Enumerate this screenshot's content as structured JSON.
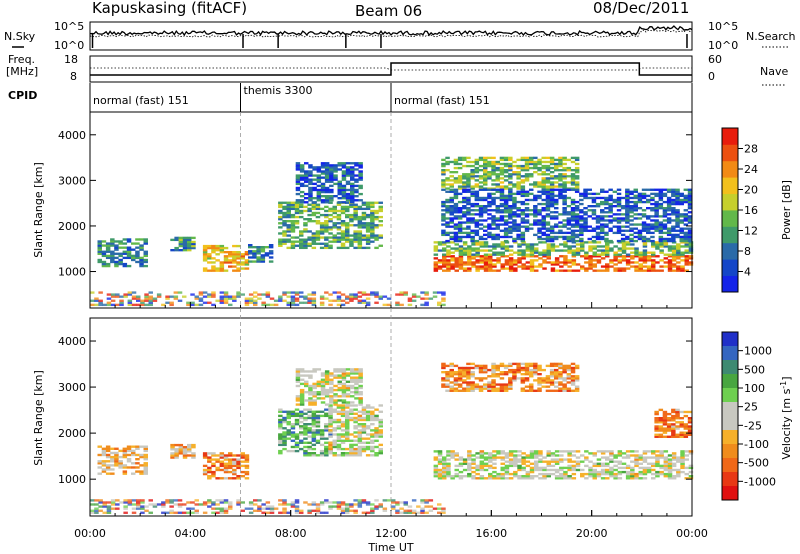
{
  "header": {
    "station": "Kapuskasing (fitACF)",
    "beam": "Beam 06",
    "date": "08/Dec/2011"
  },
  "noise_panel": {
    "left_label": "N.Sky",
    "left_ticks": [
      "10^5",
      "10^0"
    ],
    "right_label": "N.Search",
    "right_ticks": [
      "10^5",
      "10^0"
    ]
  },
  "freq_panel": {
    "left_label_1": "Freq.",
    "left_label_2": "[MHz]",
    "left_ticks": [
      "18",
      "8"
    ],
    "right_label": "Nave",
    "right_ticks": [
      "60",
      "0"
    ]
  },
  "cpid": {
    "label": "CPID",
    "segments": [
      {
        "name": "normal (fast) 151",
        "start_hour": 0,
        "end_hour": 6
      },
      {
        "name": "themis 3300",
        "start_hour": 6,
        "end_hour": 12
      },
      {
        "name": "normal (fast) 151",
        "start_hour": 12,
        "end_hour": 24
      }
    ]
  },
  "x_axis": {
    "label": "Time UT",
    "ticks": [
      "00:00",
      "04:00",
      "08:00",
      "12:00",
      "16:00",
      "20:00",
      "00:00"
    ]
  },
  "chart_data": [
    {
      "type": "heatmap",
      "panel": "power",
      "ylabel": "Slant Range [km]",
      "yticks": [
        1000,
        2000,
        3000,
        4000
      ],
      "ylim": [
        200,
        4500
      ],
      "xlim_hours": [
        0,
        24
      ],
      "colorbar_label": "Power [dB]",
      "colorbar_ticks": [
        4,
        8,
        12,
        16,
        20,
        24,
        28
      ],
      "colorbar_colors": [
        "#1424e8",
        "#1446c8",
        "#2a6aa8",
        "#3f9a6a",
        "#62b84a",
        "#c6cf2c",
        "#f2c01c",
        "#f28a14",
        "#ec5010",
        "#e81c0c"
      ],
      "echo_regions": [
        {
          "t0": 0.3,
          "t1": 2.2,
          "r0": 1100,
          "r1": 1700,
          "level": 0.3
        },
        {
          "t0": 3.2,
          "t1": 4.2,
          "r0": 1450,
          "r1": 1750,
          "level": 0.35
        },
        {
          "t0": 4.5,
          "t1": 6.3,
          "r0": 1000,
          "r1": 1550,
          "level": 0.65
        },
        {
          "t0": 6.3,
          "t1": 7.3,
          "r0": 1200,
          "r1": 1600,
          "level": 0.3
        },
        {
          "t0": 7.5,
          "t1": 11.6,
          "r0": 1500,
          "r1": 2500,
          "level": 0.4
        },
        {
          "t0": 8.2,
          "t1": 10.8,
          "r0": 2500,
          "r1": 3400,
          "level": 0.2
        },
        {
          "t0": 13.7,
          "t1": 23.9,
          "r0": 1000,
          "r1": 1350,
          "level": 0.82
        },
        {
          "t0": 13.7,
          "t1": 23.9,
          "r0": 1350,
          "r1": 1650,
          "level": 0.45
        },
        {
          "t0": 14.0,
          "t1": 19.5,
          "r0": 2800,
          "r1": 3500,
          "level": 0.45
        },
        {
          "t0": 14.0,
          "t1": 23.9,
          "r0": 1650,
          "r1": 2800,
          "level": 0.2
        }
      ]
    },
    {
      "type": "heatmap",
      "panel": "velocity",
      "ylabel": "Slant Range [km]",
      "yticks": [
        1000,
        2000,
        3000,
        4000
      ],
      "ylim": [
        200,
        4500
      ],
      "xlim_hours": [
        0,
        24
      ],
      "colorbar_label": "Velocity [m s^-1]",
      "colorbar_ticks": [
        1000,
        500,
        100,
        25,
        -25,
        -100,
        -500,
        -1000
      ],
      "colorbar_colors": [
        "#2030c8",
        "#3466c0",
        "#3e8a72",
        "#48a640",
        "#6ed050",
        "#c8c8c0",
        "#c8c8c0",
        "#f6b02a",
        "#f08c1c",
        "#f06818",
        "#e83814",
        "#e01010"
      ],
      "echo_regions": [
        {
          "t0": 0.3,
          "t1": 2.2,
          "r0": 1100,
          "r1": 1700,
          "level": 0.6
        },
        {
          "t0": 3.2,
          "t1": 4.2,
          "r0": 1450,
          "r1": 1750,
          "level": 0.65
        },
        {
          "t0": 4.5,
          "t1": 6.3,
          "r0": 1000,
          "r1": 1550,
          "level": 0.72
        },
        {
          "t0": 7.5,
          "t1": 9.5,
          "r0": 1500,
          "r1": 2500,
          "level": 0.3
        },
        {
          "t0": 9.5,
          "t1": 11.6,
          "r0": 1500,
          "r1": 2600,
          "level": 0.5
        },
        {
          "t0": 8.2,
          "t1": 10.8,
          "r0": 2600,
          "r1": 3400,
          "level": 0.5
        },
        {
          "t0": 13.7,
          "t1": 23.9,
          "r0": 1000,
          "r1": 1600,
          "level": 0.5
        },
        {
          "t0": 14.0,
          "t1": 19.5,
          "r0": 2900,
          "r1": 3500,
          "level": 0.7
        },
        {
          "t0": 22.5,
          "t1": 23.9,
          "r0": 1900,
          "r1": 2500,
          "level": 0.75
        }
      ]
    }
  ]
}
